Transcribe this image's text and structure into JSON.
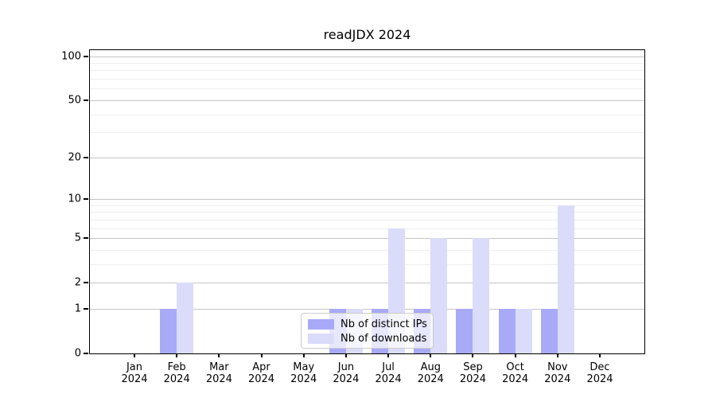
{
  "chart_data": {
    "type": "bar",
    "title": "readJDX 2024",
    "categories": [
      "Jan",
      "Feb",
      "Mar",
      "Apr",
      "May",
      "Jun",
      "Jul",
      "Aug",
      "Sep",
      "Oct",
      "Nov",
      "Dec"
    ],
    "year_label": "2024",
    "series": [
      {
        "name": "Nb of distinct IPs",
        "color": "#a8aaf7",
        "values": [
          0,
          1,
          0,
          0,
          0,
          1,
          1,
          1,
          1,
          1,
          1,
          0
        ]
      },
      {
        "name": "Nb of downloads",
        "color": "#dbdcfa",
        "values": [
          0,
          2,
          0,
          0,
          0,
          1,
          6,
          5,
          5,
          1,
          9,
          0
        ]
      }
    ],
    "xlabel": "",
    "ylabel": "",
    "yscale": "log1p",
    "ylim": [
      0,
      110
    ],
    "yticks": [
      0,
      1,
      2,
      5,
      10,
      20,
      50,
      100
    ],
    "minor_yticks": [
      3,
      4,
      6,
      7,
      8,
      9,
      30,
      40,
      60,
      70,
      80,
      90
    ],
    "grid": true,
    "legend_position": "lower-center"
  },
  "colors": {
    "axis": "#000000",
    "grid_major": "#c6c6c6",
    "grid_minor": "#efefef",
    "background": "#ffffff"
  }
}
